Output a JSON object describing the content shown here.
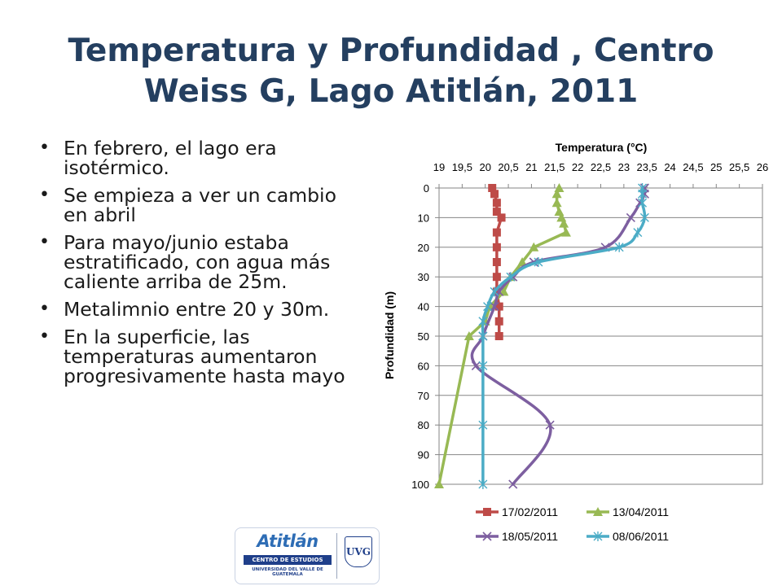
{
  "slide": {
    "title": "Temperatura y Profundidad , Centro Weiss G, Lago Atitlán, 2011",
    "bullets": [
      "En febrero, el lago era isotérmico.",
      "Se empieza a ver un cambio en abril",
      "Para mayo/junio  estaba estratificado, con agua más caliente arriba de 25m.",
      "Metalimnio entre 20 y 30m.",
      "En la superficie, las temperaturas aumentaron progresivamente hasta mayo"
    ]
  },
  "logo": {
    "wordmark": "Atitlán",
    "band_text": "CENTRO DE ESTUDIOS",
    "sub_text": "UNIVERSIDAD DEL VALLE DE GUATEMALA",
    "crest_text": "UVG"
  },
  "chart_data": {
    "type": "line",
    "title": "Temperatura (°C)",
    "xlabel": "Temperatura (°C)",
    "ylabel": "Profundidad (m)",
    "x_axis_position": "top",
    "y_axis_reversed": true,
    "xlim": [
      19,
      26
    ],
    "ylim": [
      0,
      100
    ],
    "x_ticks": [
      "19",
      "19,5",
      "20",
      "20,5",
      "21",
      "21,5",
      "22",
      "22,5",
      "23",
      "23,5",
      "24",
      "24,5",
      "25",
      "25,5",
      "26"
    ],
    "y_ticks": [
      "0",
      "10",
      "20",
      "30",
      "40",
      "50",
      "60",
      "70",
      "80",
      "90",
      "100"
    ],
    "grid": "horizontal",
    "legend_position": "bottom",
    "series": [
      {
        "name": "17/02/2011",
        "color": "#be4b48",
        "marker": "square",
        "smooth": false,
        "points": [
          [
            20.15,
            0
          ],
          [
            20.2,
            2
          ],
          [
            20.25,
            5
          ],
          [
            20.25,
            8
          ],
          [
            20.35,
            10
          ],
          [
            20.25,
            15
          ],
          [
            20.25,
            20
          ],
          [
            20.25,
            25
          ],
          [
            20.25,
            30
          ],
          [
            20.25,
            35
          ],
          [
            20.3,
            40
          ],
          [
            20.3,
            45
          ],
          [
            20.3,
            50
          ]
        ]
      },
      {
        "name": "13/04/2011",
        "color": "#98b954",
        "marker": "triangle",
        "smooth": false,
        "points": [
          [
            21.6,
            0
          ],
          [
            21.55,
            2
          ],
          [
            21.55,
            5
          ],
          [
            21.6,
            8
          ],
          [
            21.65,
            10
          ],
          [
            21.7,
            12
          ],
          [
            21.75,
            15
          ],
          [
            21.05,
            20
          ],
          [
            20.8,
            25
          ],
          [
            20.55,
            30
          ],
          [
            20.4,
            35
          ],
          [
            20.1,
            40
          ],
          [
            20.0,
            45
          ],
          [
            19.65,
            50
          ],
          [
            19.0,
            100
          ]
        ]
      },
      {
        "name": "18/05/2011",
        "color": "#7d5fa0",
        "marker": "x",
        "smooth": true,
        "points": [
          [
            23.45,
            0
          ],
          [
            23.45,
            2
          ],
          [
            23.35,
            5
          ],
          [
            23.15,
            10
          ],
          [
            22.6,
            20
          ],
          [
            21.05,
            25
          ],
          [
            20.6,
            30
          ],
          [
            20.3,
            35
          ],
          [
            20.2,
            40
          ],
          [
            19.95,
            50
          ],
          [
            19.8,
            60
          ],
          [
            21.4,
            80
          ],
          [
            20.6,
            100
          ]
        ]
      },
      {
        "name": "08/06/2011",
        "color": "#4bacc6",
        "marker": "asterisk",
        "smooth": true,
        "points": [
          [
            23.4,
            0
          ],
          [
            23.4,
            2
          ],
          [
            23.4,
            5
          ],
          [
            23.45,
            10
          ],
          [
            23.3,
            15
          ],
          [
            22.9,
            20
          ],
          [
            21.15,
            25
          ],
          [
            20.55,
            30
          ],
          [
            20.2,
            35
          ],
          [
            20.05,
            40
          ],
          [
            19.95,
            45
          ],
          [
            19.95,
            50
          ],
          [
            19.95,
            60
          ],
          [
            19.95,
            80
          ],
          [
            19.95,
            100
          ]
        ]
      }
    ]
  }
}
